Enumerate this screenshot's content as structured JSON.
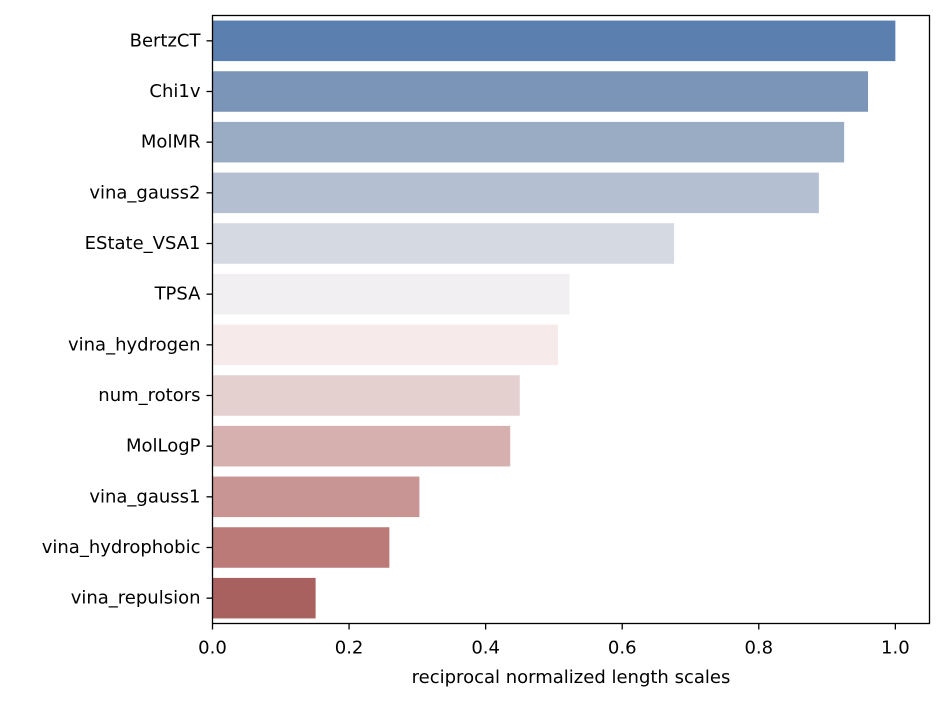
{
  "chart_data": {
    "type": "bar",
    "orientation": "horizontal",
    "title": "",
    "xlabel": "reciprocal normalized length scales",
    "ylabel": "",
    "xlim": [
      0.0,
      1.05
    ],
    "x_ticks": [
      0.0,
      0.2,
      0.4,
      0.6,
      0.8,
      1.0
    ],
    "x_tick_labels": [
      "0.0",
      "0.2",
      "0.4",
      "0.6",
      "0.8",
      "1.0"
    ],
    "grid": false,
    "legend": "none",
    "categories": [
      "BertzCT",
      "Chi1v",
      "MolMR",
      "vina_gauss2",
      "EState_VSA1",
      "TPSA",
      "vina_hydrogen",
      "num_rotors",
      "MolLogP",
      "vina_gauss1",
      "vina_hydrophobic",
      "vina_repulsion"
    ],
    "values": [
      1.0,
      0.96,
      0.925,
      0.888,
      0.676,
      0.523,
      0.506,
      0.45,
      0.436,
      0.303,
      0.259,
      0.151
    ],
    "colors": [
      "#5b7faf",
      "#7b95b8",
      "#9aabc4",
      "#b4bfd2",
      "#d5d9e2",
      "#f1eff2",
      "#f7eaea",
      "#e5d0d0",
      "#d6b0af",
      "#c99594",
      "#bb7978",
      "#a96160"
    ]
  }
}
